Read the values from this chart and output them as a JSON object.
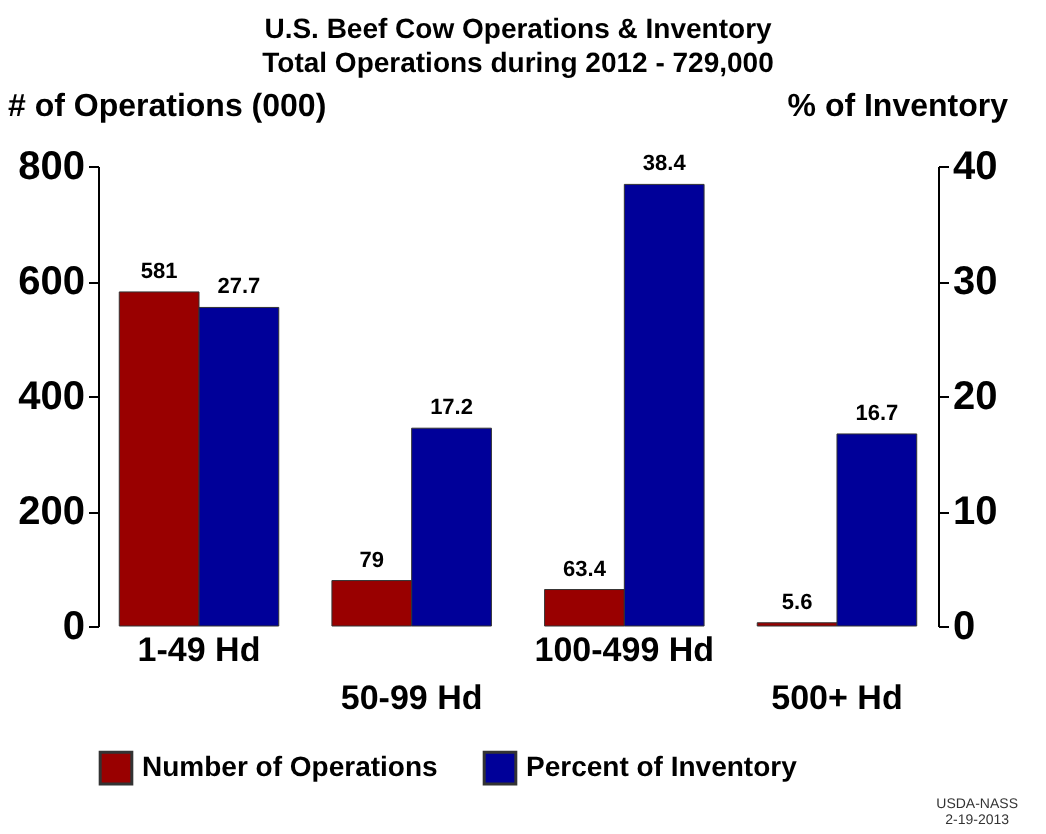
{
  "chart_data": {
    "type": "bar",
    "title": "U.S. Beef Cow Operations & Inventory",
    "subtitle": "Total Operations during 2012 - 729,000",
    "ylabel": "# of Operations (000)",
    "y2label": "% of Inventory",
    "categories": [
      "1-49 Hd",
      "50-99 Hd",
      "100-499 Hd",
      "500+ Hd"
    ],
    "series": [
      {
        "name": "Number of Operations",
        "color": "#990000",
        "values": [
          581,
          79,
          63.4,
          5.6
        ]
      },
      {
        "name": "Percent of Inventory",
        "color": "#000099",
        "values": [
          27.7,
          17.2,
          38.4,
          16.7
        ],
        "axis": "y2"
      }
    ],
    "ylim": [
      0,
      800
    ],
    "yticks": [
      0,
      200,
      400,
      600,
      800
    ],
    "y2lim": [
      0,
      40
    ],
    "y2ticks": [
      0,
      10,
      20,
      30,
      40
    ],
    "data_labels": true,
    "legend": "bottom",
    "grid": false,
    "annotations": [
      "USDA-NASS",
      "2-19-2013"
    ]
  }
}
